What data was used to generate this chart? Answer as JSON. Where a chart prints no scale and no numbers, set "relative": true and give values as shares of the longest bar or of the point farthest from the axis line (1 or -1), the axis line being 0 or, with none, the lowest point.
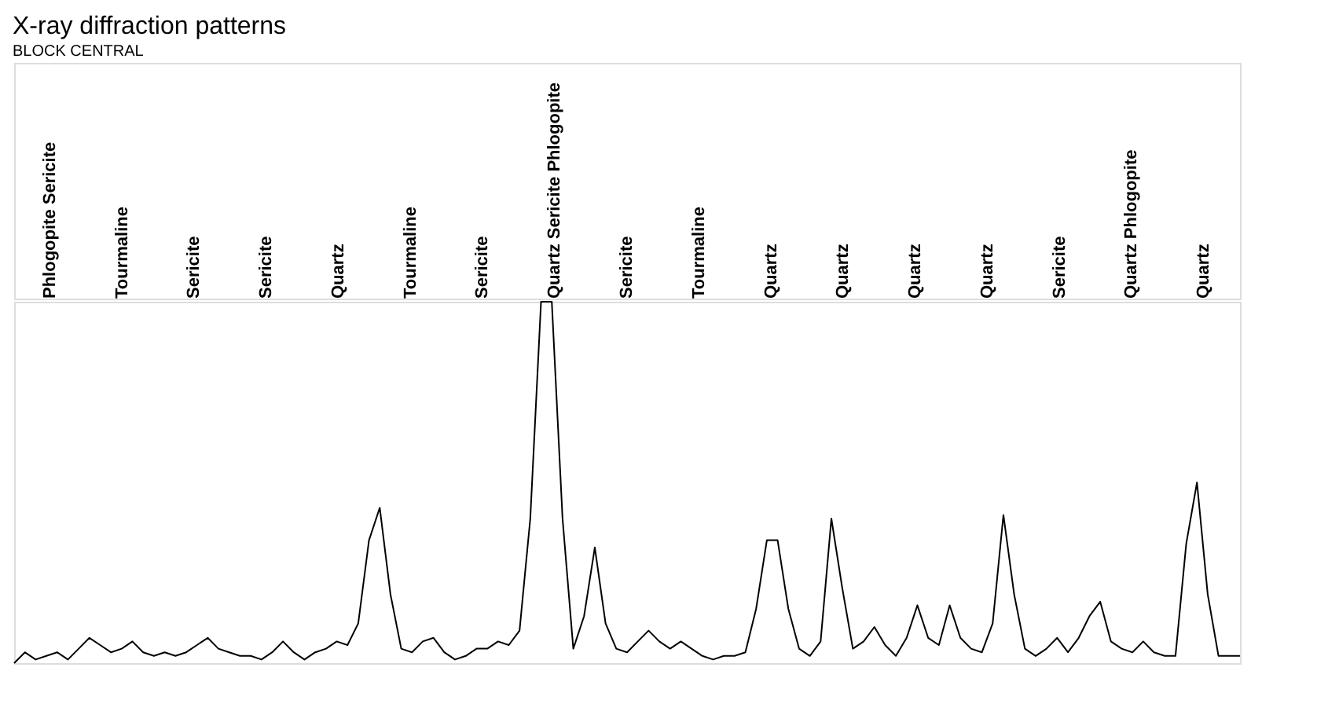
{
  "chart_data": {
    "type": "line",
    "title": "X-ray diffraction patterns",
    "subtitle": "BLOCK CENTRAL",
    "relative": true,
    "categories": [
      null,
      null,
      null,
      null,
      null,
      null,
      null,
      null,
      null,
      null,
      null,
      null,
      null,
      null,
      null,
      null,
      null,
      null,
      null,
      null,
      null,
      null,
      null,
      null,
      null,
      null,
      null,
      null,
      null,
      null,
      null,
      null,
      null,
      null,
      null,
      null,
      null,
      null,
      null,
      null,
      null,
      null,
      null,
      null,
      null,
      null,
      null,
      null,
      null,
      null,
      null,
      null,
      null,
      null,
      null,
      null,
      null,
      null,
      null,
      null,
      null,
      null,
      null,
      null,
      null,
      null,
      null,
      null,
      null,
      null,
      null,
      null,
      null,
      null,
      null,
      null,
      null,
      null,
      null,
      null,
      null,
      null,
      null,
      null,
      null,
      null,
      null,
      null,
      null,
      null,
      null,
      null,
      null,
      null,
      null,
      null,
      null,
      null,
      null,
      null,
      null,
      null,
      null,
      null,
      null,
      null,
      null,
      null,
      null,
      null,
      null,
      null,
      null,
      null,
      null
    ],
    "series": [
      {
        "color": "#000000",
        "values": [
          0,
          0.03,
          0.01,
          0.02,
          0.03,
          0.01,
          0.04,
          0.07,
          0.05,
          0.03,
          0.04,
          0.06,
          0.03,
          0.02,
          0.03,
          0.02,
          0.03,
          0.05,
          0.07,
          0.04,
          0.03,
          0.02,
          0.02,
          0.01,
          0.03,
          0.06,
          0.03,
          0.01,
          0.03,
          0.04,
          0.06,
          0.05,
          0.11,
          0.34,
          0.43,
          0.19,
          0.04,
          0.03,
          0.06,
          0.07,
          0.03,
          0.01,
          0.02,
          0.04,
          0.04,
          0.06,
          0.05,
          0.09,
          0.4,
          1,
          1,
          0.4,
          0.04,
          0.13,
          0.32,
          0.11,
          0.04,
          0.03,
          0.06,
          0.09,
          0.06,
          0.04,
          0.06,
          0.04,
          0.02,
          0.01,
          0.02,
          0.02,
          0.03,
          0.15,
          0.34,
          0.34,
          0.15,
          0.04,
          0.02,
          0.06,
          0.4,
          0.21,
          0.04,
          0.06,
          0.1,
          0.05,
          0.02,
          0.07,
          0.16,
          0.07,
          0.05,
          0.16,
          0.07,
          0.04,
          0.03,
          0.11,
          0.41,
          0.19,
          0.04,
          0.02,
          0.04,
          0.07,
          0.03,
          0.07,
          0.13,
          0.17,
          0.06,
          0.04,
          0.03,
          0.06,
          0.03,
          0.02,
          0.02,
          0.33,
          0.5,
          0.19,
          0.02,
          0.02,
          0.02
        ]
      }
    ],
    "annotations": [
      "Phlogopite Sericite",
      "Tourmaline",
      "Sericite",
      "Sericite",
      "Quartz",
      "Tourmaline",
      "Sericite",
      "Quartz Sericite Phlogopite",
      "Sericite",
      "Tourmaline",
      "Quartz",
      "Quartz",
      "Quartz",
      "Quartz",
      "Sericite",
      "Quartz Phlogopite",
      "Quartz"
    ]
  }
}
